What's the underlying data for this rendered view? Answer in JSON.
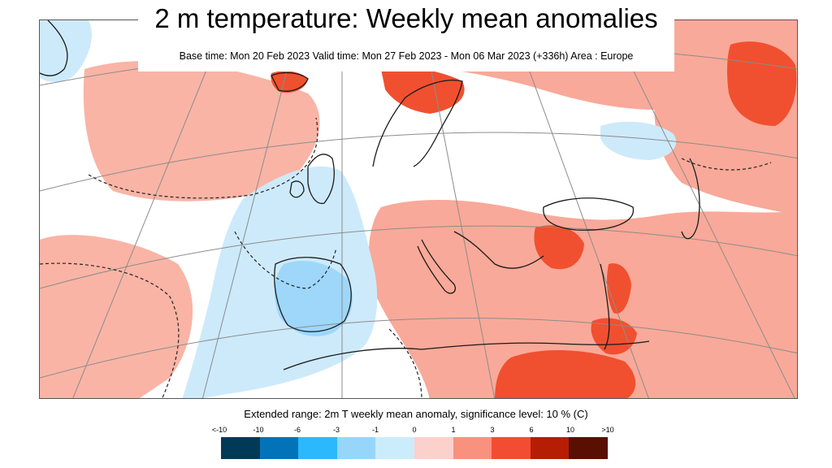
{
  "header": {
    "title": "2 m temperature: Weekly mean anomalies",
    "subtitle": "Base time: Mon 20 Feb 2023 Valid time: Mon 27 Feb 2023 - Mon 06 Mar 2023 (+336h) Area : Europe"
  },
  "footer": {
    "caption": "Extended range: 2m T weekly mean anomaly, significance level: 10 % (C)"
  },
  "legend": {
    "labels": [
      "<-10",
      "-10",
      "-6",
      "-3",
      "-1",
      "0",
      "1",
      "3",
      "6",
      "10",
      ">10"
    ],
    "colors": [
      "#013a56",
      "#0273b8",
      "#2cb8fc",
      "#96d6fb",
      "#cbecfb",
      "#fdd1cb",
      "#f9917f",
      "#f24d32",
      "#b51d05",
      "#590f01"
    ]
  },
  "map_colors": {
    "land_outline": "#1a1a1a",
    "graticule": "#8c8c8c",
    "weak_warm": "#f9a999",
    "strong_warm": "#f0502f",
    "weak_cold": "#cdeafb",
    "cold": "#9ed7fa"
  }
}
